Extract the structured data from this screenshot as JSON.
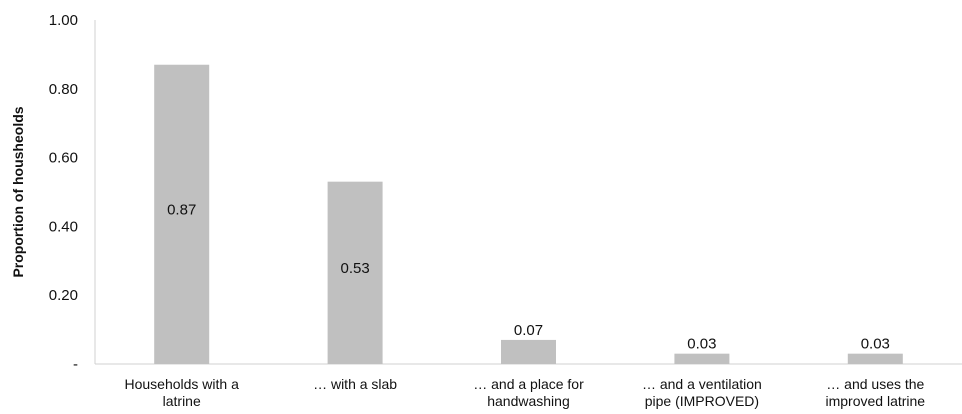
{
  "chart_data": {
    "type": "bar",
    "title": "",
    "xlabel": "",
    "ylabel": "Proportion of housheolds",
    "ylim": [
      0,
      1.0
    ],
    "yticks": [
      "-",
      "0.20",
      "0.40",
      "0.60",
      "0.80",
      "1.00"
    ],
    "grid": false,
    "bar_color": "#c0c0c0",
    "categories": [
      [
        "Households with a",
        "latrine"
      ],
      [
        "… with a slab"
      ],
      [
        "… and a place for",
        "handwashing"
      ],
      [
        "… and a ventilation",
        "pipe (IMPROVED)"
      ],
      [
        "… and uses the",
        "improved latrine"
      ]
    ],
    "values": [
      0.87,
      0.53,
      0.07,
      0.03,
      0.03
    ],
    "data_labels": [
      "0.87",
      "0.53",
      "0.07",
      "0.03",
      "0.03"
    ]
  }
}
